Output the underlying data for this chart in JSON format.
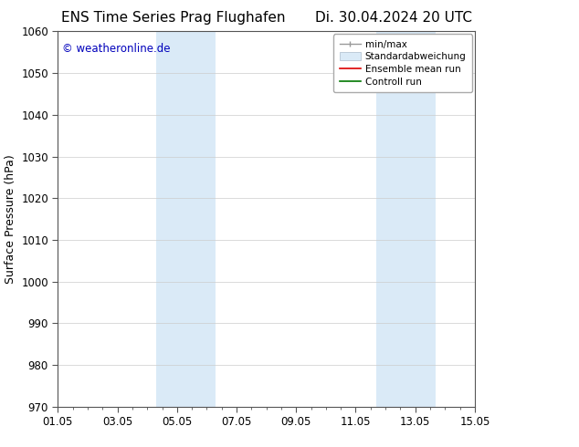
{
  "title_left": "ENS Time Series Prag Flughafen",
  "title_right": "Di. 30.04.2024 20 UTC",
  "ylabel": "Surface Pressure (hPa)",
  "ylim": [
    970,
    1060
  ],
  "xlim": [
    0,
    14
  ],
  "xtick_labels": [
    "01.05",
    "03.05",
    "05.05",
    "07.05",
    "09.05",
    "11.05",
    "13.05",
    "15.05"
  ],
  "xtick_positions": [
    0,
    2,
    4,
    6,
    8,
    10,
    12,
    14
  ],
  "ytick_positions": [
    970,
    980,
    990,
    1000,
    1010,
    1020,
    1030,
    1040,
    1050,
    1060
  ],
  "shaded_regions": [
    {
      "x_start": 3.3,
      "x_end": 5.3,
      "color": "#daeaf7"
    },
    {
      "x_start": 10.7,
      "x_end": 12.7,
      "color": "#daeaf7"
    }
  ],
  "watermark": "© weatheronline.de",
  "watermark_color": "#0000bb",
  "background_color": "#ffffff",
  "grid_color": "#cccccc",
  "spine_color": "#555555",
  "title_fontsize": 11,
  "axis_label_fontsize": 9,
  "tick_fontsize": 8.5,
  "legend_fontsize": 7.5
}
